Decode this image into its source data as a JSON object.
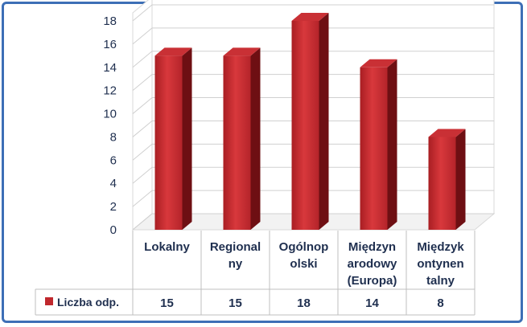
{
  "chart_data": {
    "type": "bar",
    "categories": [
      [
        "Lokalny"
      ],
      [
        "Regional",
        "ny"
      ],
      [
        "Ogólnop",
        "olski"
      ],
      [
        "Międzyn",
        "arodowy",
        "(Europa)"
      ],
      [
        "Międzyk",
        "ontynen",
        "talny"
      ]
    ],
    "series": [
      {
        "name": "Liczba odp.",
        "values": [
          15,
          15,
          18,
          14,
          8
        ],
        "color": "#c0282d"
      }
    ],
    "ylim": [
      0,
      18
    ],
    "yticks": [
      0,
      2,
      4,
      6,
      8,
      10,
      12,
      14,
      16,
      18
    ],
    "grid": true,
    "legend": "data-table",
    "show_data_table": true
  }
}
